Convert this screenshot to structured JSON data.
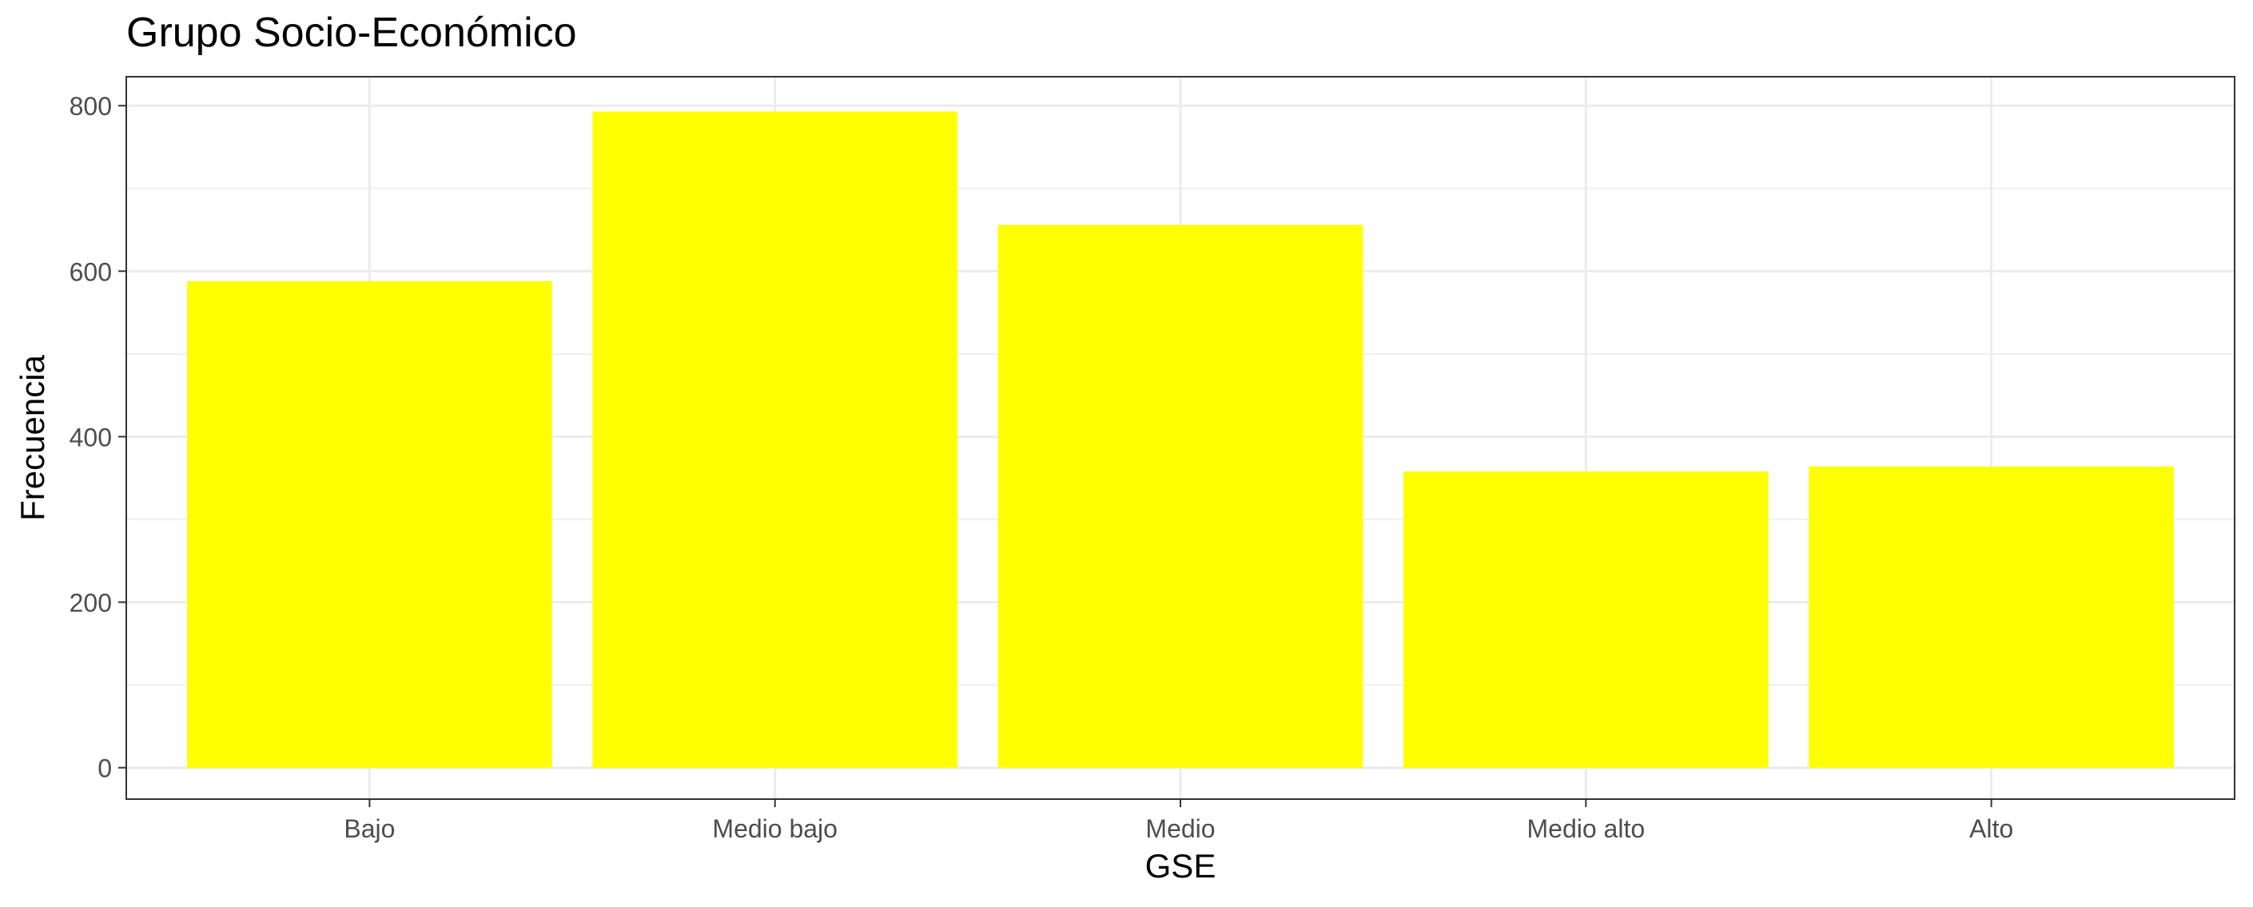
{
  "chart_data": {
    "type": "bar",
    "title": "Grupo Socio-Económico",
    "xlabel": "GSE",
    "ylabel": "Frecuencia",
    "categories": [
      "Bajo",
      "Medio bajo",
      "Medio",
      "Medio alto",
      "Alto"
    ],
    "values": [
      588,
      793,
      656,
      358,
      364
    ],
    "ylim": [
      -38,
      835
    ],
    "yticks": [
      0,
      200,
      400,
      600,
      800
    ],
    "ytick_labels": [
      "0",
      "200",
      "400",
      "600",
      "800"
    ],
    "grid": true,
    "legend": "none",
    "colors": {
      "bar": "#FFFF00",
      "panel_border": "#333333",
      "grid_major": "#EBEBEB",
      "tick_label": "#4D4D4D",
      "text": "#000000"
    }
  }
}
